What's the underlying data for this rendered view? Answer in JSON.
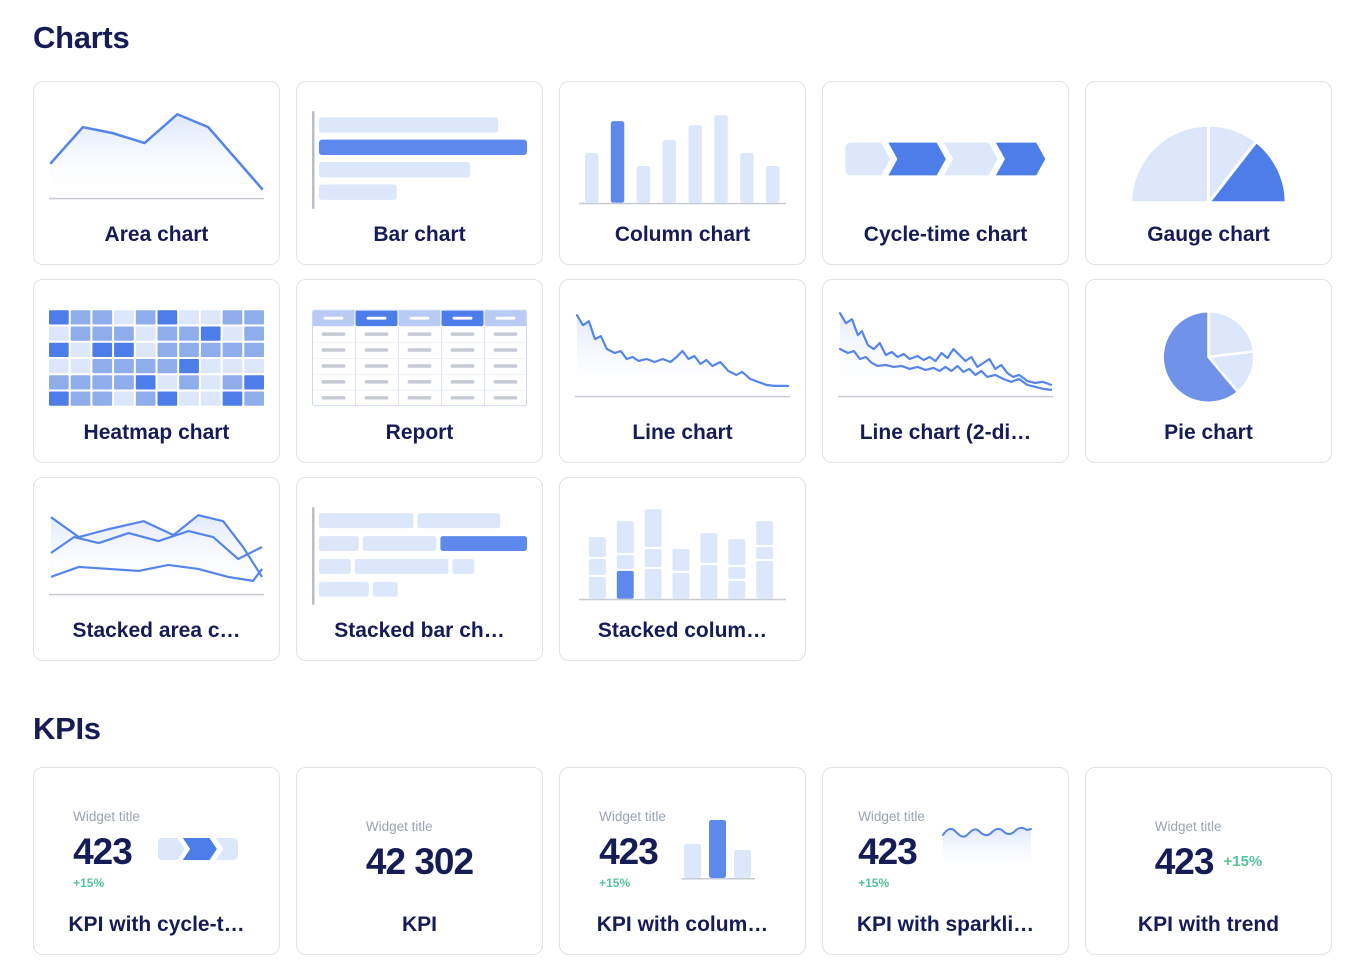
{
  "colors": {
    "heading_navy": "#161c55",
    "accent_blue": "#4d7de8",
    "bar_blue": "#5d88ec",
    "pie_blue": "#7093e9",
    "mid_blue": "#8fadea",
    "light_blue": "#dde7fc",
    "header_light_blue": "#b7cbf5",
    "line_blue": "#5585ea",
    "axis_gray": "#b9bfca",
    "baseline_gray": "#c6cbd4",
    "dash_gray": "#c5cad4",
    "widget_title_gray": "#9aa4b3",
    "delta_green": "#57c495",
    "card_border": "#dfe2e8"
  },
  "charts": {
    "title": "Charts",
    "cards": [
      {
        "label": "Area chart"
      },
      {
        "label": "Bar chart"
      },
      {
        "label": "Column chart"
      },
      {
        "label": "Cycle-time chart"
      },
      {
        "label": "Gauge chart"
      },
      {
        "label": "Heatmap chart"
      },
      {
        "label": "Report"
      },
      {
        "label": "Line chart"
      },
      {
        "label": "Line chart (2-di…"
      },
      {
        "label": "Pie chart"
      },
      {
        "label": "Stacked area c…"
      },
      {
        "label": "Stacked bar ch…"
      },
      {
        "label": "Stacked colum…"
      }
    ]
  },
  "kpis": {
    "title": "KPIs",
    "cards": [
      {
        "label": "KPI with cycle-t…",
        "widget_title": "Widget title",
        "value": "423",
        "delta": "+15%"
      },
      {
        "label": "KPI",
        "widget_title": "Widget title",
        "value": "42 302"
      },
      {
        "label": "KPI with colum…",
        "widget_title": "Widget title",
        "value": "423",
        "delta": "+15%"
      },
      {
        "label": "KPI with sparkli…",
        "widget_title": "Widget title",
        "value": "423",
        "delta": "+15%"
      },
      {
        "label": "KPI with trend",
        "widget_title": "Widget title",
        "value": "423",
        "delta": "+15%"
      }
    ]
  },
  "thumbs": {
    "heatmap": {
      "rows": 6,
      "cols": 10,
      "palette": [
        "#dde7fc",
        "#8fadea",
        "#4d7de8"
      ],
      "levels": [
        [
          2,
          1,
          1,
          0,
          1,
          2,
          0,
          0,
          1,
          1
        ],
        [
          0,
          1,
          1,
          1,
          0,
          1,
          1,
          2,
          0,
          1
        ],
        [
          2,
          0,
          2,
          2,
          0,
          1,
          1,
          1,
          1,
          1
        ],
        [
          0,
          0,
          1,
          1,
          1,
          1,
          2,
          0,
          0,
          0
        ],
        [
          1,
          1,
          1,
          1,
          2,
          0,
          1,
          0,
          1,
          2
        ],
        [
          2,
          1,
          1,
          0,
          1,
          2,
          0,
          0,
          2,
          1
        ]
      ]
    },
    "report": {
      "header_pattern": [
        "light",
        "dark",
        "light",
        "dark",
        "light"
      ],
      "body_rows": 5,
      "cols": 5,
      "colors": {
        "dark": "#4d7de8",
        "header_light": "#b7cbf5",
        "header_dash": "#ffffff",
        "body_dash": "#c5cad4",
        "col_sep": "#dbe4f8",
        "row_sep": "#eef2fb",
        "outer_border": "#ccd7f3"
      }
    }
  }
}
